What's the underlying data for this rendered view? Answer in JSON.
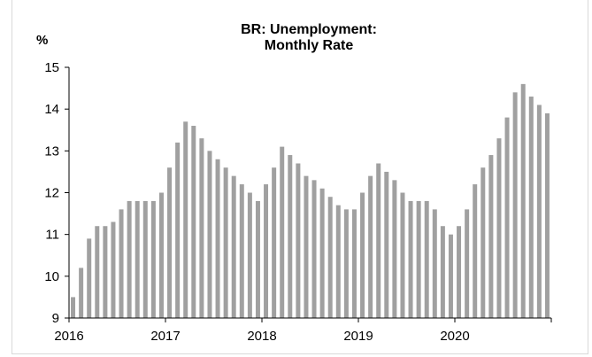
{
  "chart_data": {
    "type": "bar",
    "title_lines": [
      "BR: Unemployment:",
      "Monthly Rate"
    ],
    "ylabel": "%",
    "xlabel": "",
    "ylim": [
      9,
      15
    ],
    "yticks": [
      9,
      10,
      11,
      12,
      13,
      14,
      15
    ],
    "xticks": [
      "2016",
      "2017",
      "2018",
      "2019",
      "2020"
    ],
    "grid": false,
    "legend": false,
    "bar_color": "#a0a0a0",
    "categories": [
      "2016-01",
      "2016-02",
      "2016-03",
      "2016-04",
      "2016-05",
      "2016-06",
      "2016-07",
      "2016-08",
      "2016-09",
      "2016-10",
      "2016-11",
      "2016-12",
      "2017-01",
      "2017-02",
      "2017-03",
      "2017-04",
      "2017-05",
      "2017-06",
      "2017-07",
      "2017-08",
      "2017-09",
      "2017-10",
      "2017-11",
      "2017-12",
      "2018-01",
      "2018-02",
      "2018-03",
      "2018-04",
      "2018-05",
      "2018-06",
      "2018-07",
      "2018-08",
      "2018-09",
      "2018-10",
      "2018-11",
      "2018-12",
      "2019-01",
      "2019-02",
      "2019-03",
      "2019-04",
      "2019-05",
      "2019-06",
      "2019-07",
      "2019-08",
      "2019-09",
      "2019-10",
      "2019-11",
      "2019-12",
      "2020-01",
      "2020-02",
      "2020-03",
      "2020-04",
      "2020-05",
      "2020-06",
      "2020-07",
      "2020-08",
      "2020-09",
      "2020-10",
      "2020-11",
      "2020-12"
    ],
    "values": [
      9.5,
      10.2,
      10.9,
      11.2,
      11.2,
      11.3,
      11.6,
      11.8,
      11.8,
      11.8,
      11.8,
      12.0,
      12.6,
      13.2,
      13.7,
      13.6,
      13.3,
      13.0,
      12.8,
      12.6,
      12.4,
      12.2,
      12.0,
      11.8,
      12.2,
      12.6,
      13.1,
      12.9,
      12.7,
      12.4,
      12.3,
      12.1,
      11.9,
      11.7,
      11.6,
      11.6,
      12.0,
      12.4,
      12.7,
      12.5,
      12.3,
      12.0,
      11.8,
      11.8,
      11.8,
      11.6,
      11.2,
      11.0,
      11.2,
      11.6,
      12.2,
      12.6,
      12.9,
      13.3,
      13.8,
      14.4,
      14.6,
      14.3,
      14.1,
      13.9
    ]
  }
}
